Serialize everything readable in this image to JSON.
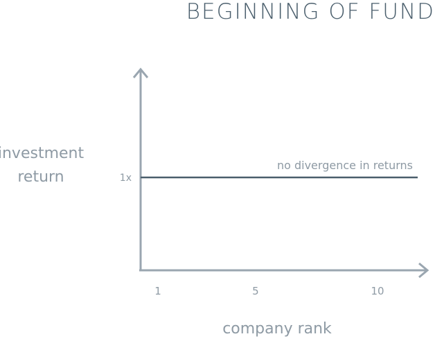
{
  "chart_data": {
    "type": "line",
    "title": "BEGINNING OF FUND",
    "xlabel": "company rank",
    "ylabel": "investment return",
    "x_ticks": [
      "1",
      "5",
      "10"
    ],
    "y_ticks": [
      "1x"
    ],
    "series": [
      {
        "x": [
          1,
          12
        ],
        "y": [
          1,
          1
        ],
        "annotation": "no divergence in returns"
      }
    ],
    "grid": false,
    "colors": {
      "axis": "#9aa6b0",
      "line": "#4a5e6c",
      "text": "#8e9aa4",
      "title": "#4a5e6c"
    }
  }
}
